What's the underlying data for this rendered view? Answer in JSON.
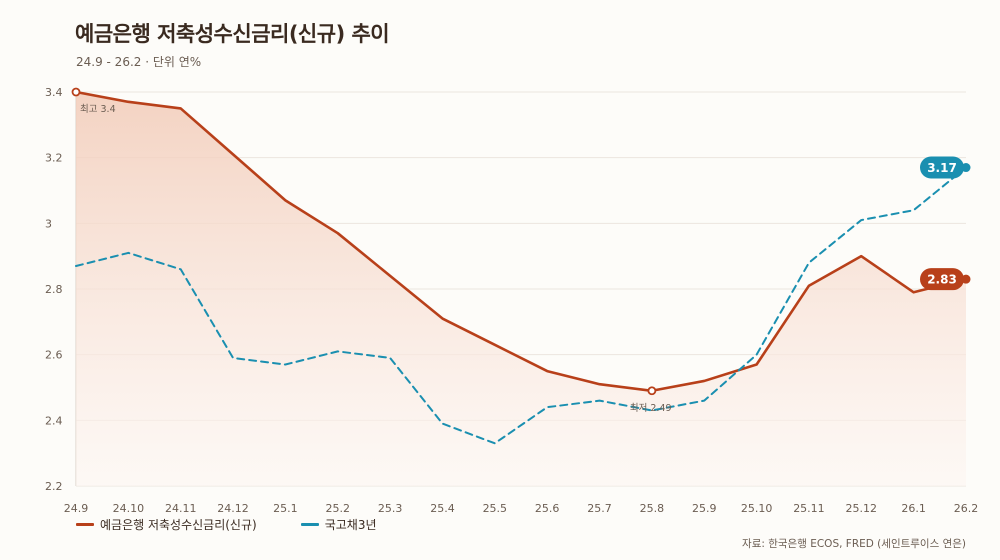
{
  "title": "예금은행 저축성수신금리(신규) 추이",
  "subtitle": "24.9 - 26.2 · 단위 연%",
  "source": "자료: 한국은행 ECOS, FRED (세인트루이스 연은)",
  "colors": {
    "deposit": "#b8401a",
    "treasury": "#1a8fb0",
    "grid": "#ece6df",
    "area_top": "#f2cbb8",
    "area_bottom": "#fdf6f2"
  },
  "chart_data": {
    "type": "line",
    "x": [
      "24.9",
      "24.10",
      "24.11",
      "24.12",
      "25.1",
      "25.2",
      "25.3",
      "25.4",
      "25.5",
      "25.6",
      "25.7",
      "25.8",
      "25.9",
      "25.10",
      "25.11",
      "25.12",
      "26.1",
      "26.2"
    ],
    "ylim": [
      2.2,
      3.4
    ],
    "yticks": [
      2.2,
      2.4,
      2.6,
      2.8,
      3,
      3.2,
      3.4
    ],
    "ytick_labels": [
      "2.2",
      "2.4",
      "2.6",
      "2.8",
      "3",
      "3.2",
      "3.4"
    ],
    "grid": true,
    "legend_position": "bottom-left",
    "series": [
      {
        "name": "예금은행 저축성수신금리(신규)",
        "style": "solid",
        "area": true,
        "values": [
          3.4,
          3.37,
          3.35,
          3.21,
          3.07,
          2.97,
          2.84,
          2.71,
          2.63,
          2.55,
          2.51,
          2.49,
          2.52,
          2.57,
          2.81,
          2.9,
          2.79,
          2.83
        ],
        "end_label": "2.83"
      },
      {
        "name": "국고채3년",
        "style": "dashed",
        "area": false,
        "values": [
          2.87,
          2.91,
          2.86,
          2.59,
          2.57,
          2.61,
          2.59,
          2.39,
          2.33,
          2.44,
          2.46,
          2.43,
          2.46,
          2.6,
          2.88,
          3.01,
          3.04,
          3.17
        ],
        "end_label": "3.17"
      }
    ],
    "annotations": [
      {
        "series": 0,
        "index": 0,
        "text": "최고 3.4"
      },
      {
        "series": 0,
        "index": 11,
        "text": "최저 2.49"
      }
    ]
  }
}
